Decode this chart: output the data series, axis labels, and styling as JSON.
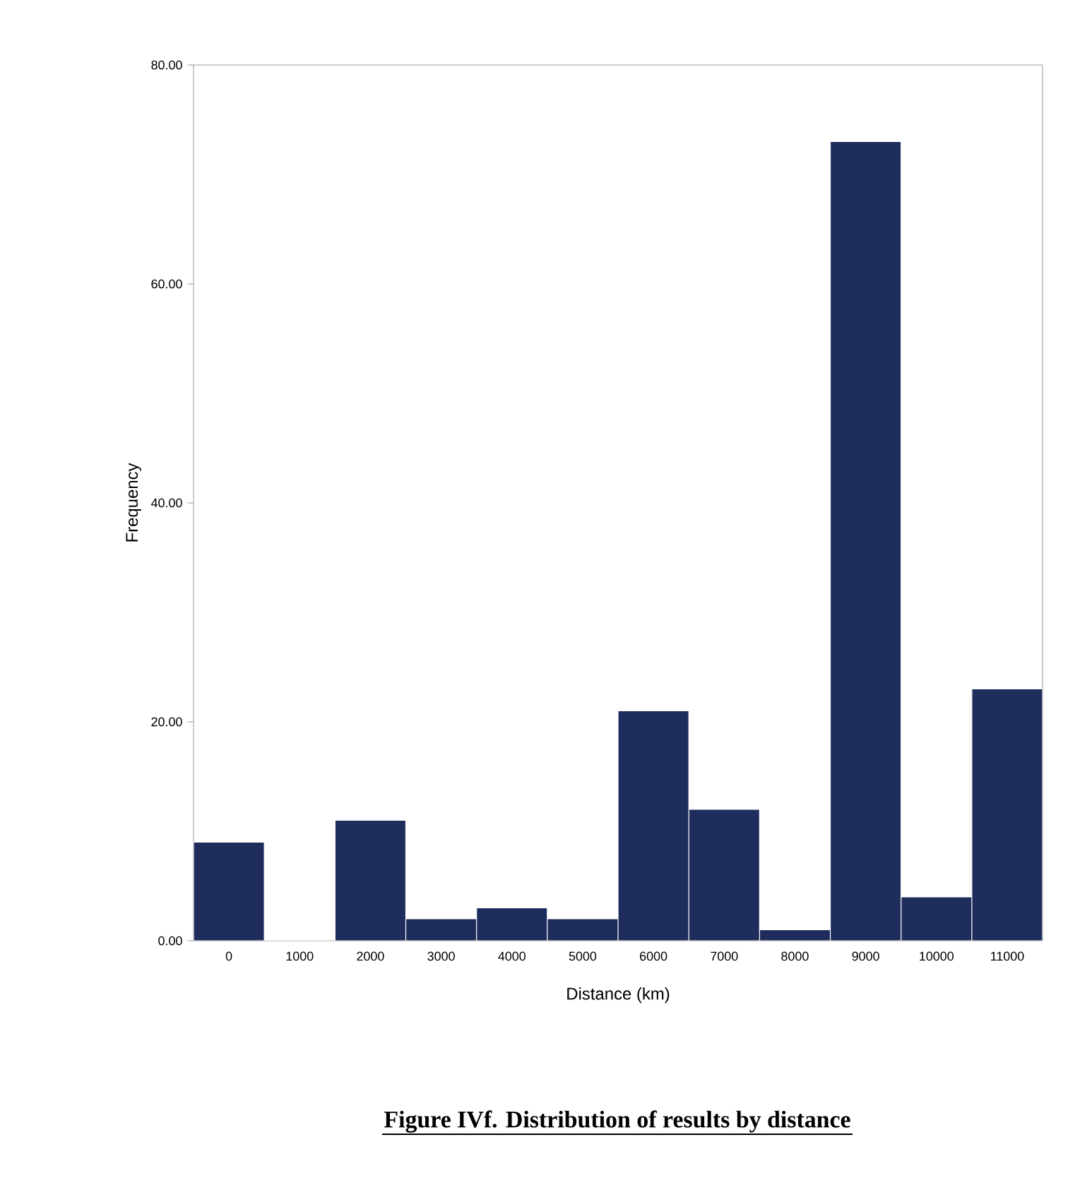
{
  "chart_data": {
    "type": "bar",
    "title": "Figure IVf. Distribution of results by distance",
    "xlabel": "Distance (km)",
    "ylabel": "Frequency",
    "categories": [
      "0",
      "1000",
      "2000",
      "3000",
      "4000",
      "5000",
      "6000",
      "7000",
      "8000",
      "9000",
      "10000",
      "11000"
    ],
    "values": [
      9,
      0,
      11,
      2,
      3,
      2,
      21,
      12,
      1,
      73,
      4,
      23
    ],
    "color": "#1f2d5c",
    "ylim": [
      0,
      80
    ],
    "yticks": [
      {
        "value": 0,
        "label": "0.00"
      },
      {
        "value": 20,
        "label": "20.00"
      },
      {
        "value": 40,
        "label": "40.00"
      },
      {
        "value": 60,
        "label": "60.00"
      },
      {
        "value": 80,
        "label": "80.00"
      }
    ],
    "grid": false
  }
}
